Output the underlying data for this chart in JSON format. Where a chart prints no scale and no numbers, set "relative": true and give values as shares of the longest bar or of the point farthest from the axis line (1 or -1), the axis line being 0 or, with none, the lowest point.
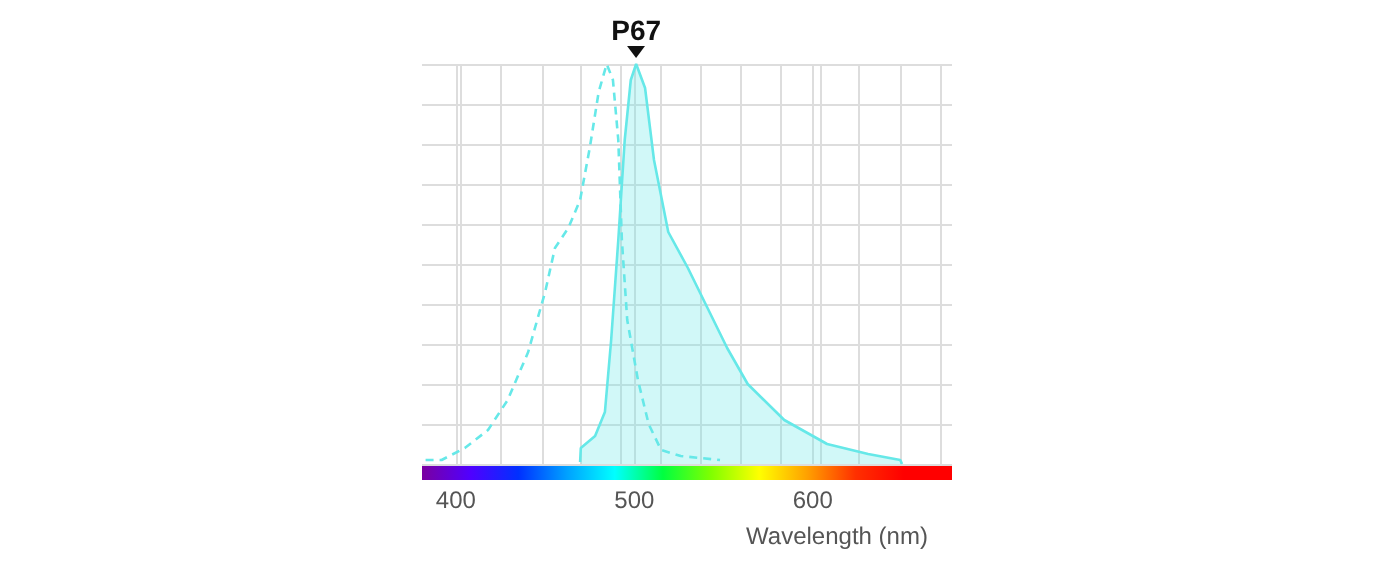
{
  "chart_data": {
    "type": "area",
    "relative": true,
    "xlabel": "Wavelength (nm)",
    "xlim": [
      381,
      678
    ],
    "xticks": [
      {
        "value": 403,
        "label": null
      },
      400,
      {
        "value": 425,
        "label": null
      },
      {
        "value": 448,
        "label": null
      },
      {
        "value": 470,
        "label": null
      },
      {
        "value": 492,
        "label": null
      },
      500,
      {
        "value": 515,
        "label": null
      },
      {
        "value": 537,
        "label": null
      },
      {
        "value": 559,
        "label": null
      },
      {
        "value": 582,
        "label": null
      },
      600,
      {
        "value": 604,
        "label": null
      },
      {
        "value": 626,
        "label": null
      },
      {
        "value": 649,
        "label": null
      },
      {
        "value": 671,
        "label": null
      }
    ],
    "grid": true,
    "marker": "none",
    "annotations": [
      {
        "text": "P67",
        "x": 501,
        "y": 1
      }
    ],
    "series": [
      {
        "type": "line",
        "line_style": "dashed",
        "color": "#66e8e8",
        "x": [
          383,
          392,
          405,
          418,
          429,
          440.5,
          450,
          455.5,
          463,
          469.6,
          475,
          480,
          484.5,
          488,
          491,
          493,
          496,
          502,
          508,
          515,
          526,
          548
        ],
        "values": [
          0.01,
          0.01,
          0.04,
          0.085,
          0.16,
          0.28,
          0.43,
          0.54,
          0.59,
          0.66,
          0.79,
          0.93,
          1.0,
          0.96,
          0.81,
          0.56,
          0.36,
          0.21,
          0.1,
          0.035,
          0.02,
          0.01
        ]
      },
      {
        "line_style": "solid",
        "color": "#66e8e8",
        "x": [
          469.6,
          470,
          478,
          483.5,
          487,
          491,
          494.6,
          498,
          501,
          506,
          511,
          519,
          530,
          541,
          552,
          563.5,
          584,
          608,
          631,
          649,
          650
        ],
        "values": [
          0.005,
          0.04,
          0.07,
          0.13,
          0.31,
          0.56,
          0.81,
          0.96,
          1.0,
          0.94,
          0.76,
          0.58,
          0.49,
          0.39,
          0.29,
          0.2,
          0.11,
          0.05,
          0.025,
          0.01,
          0
        ]
      }
    ]
  }
}
